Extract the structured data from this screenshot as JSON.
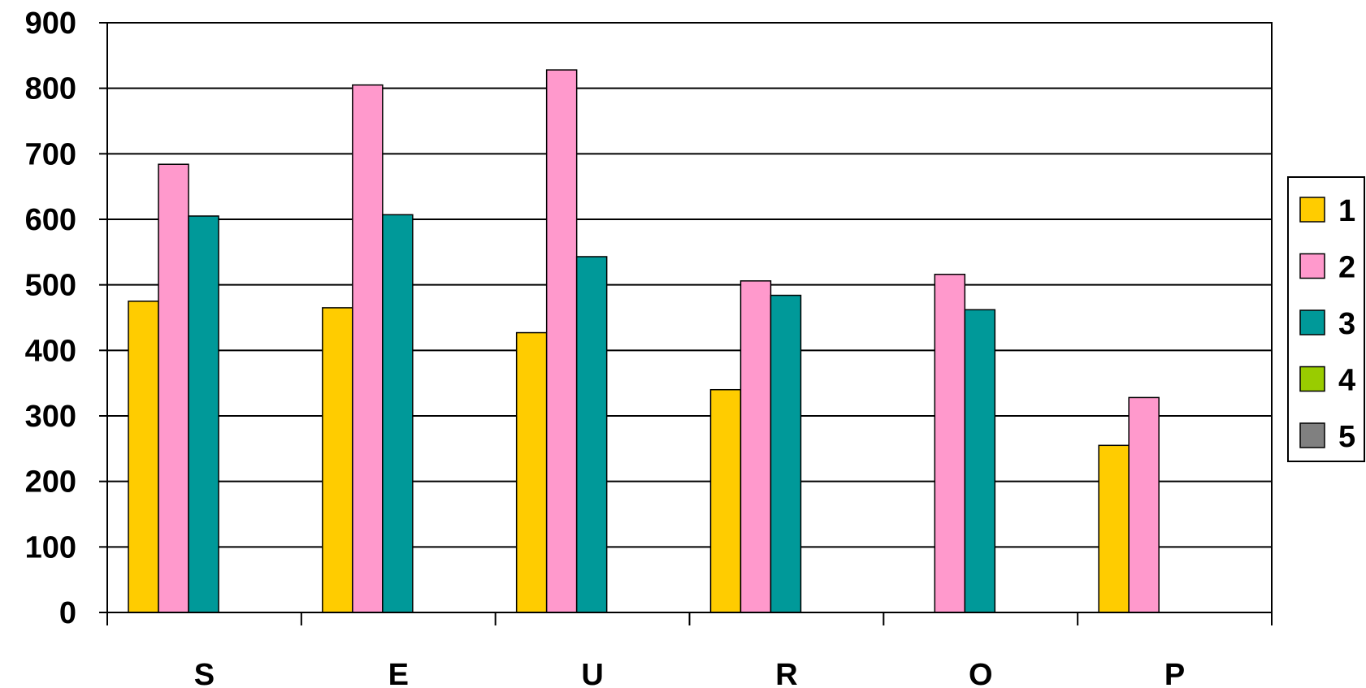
{
  "chart_data": {
    "type": "bar",
    "title": "",
    "xlabel": "",
    "ylabel": "",
    "categories": [
      "S",
      "E",
      "U",
      "R",
      "O",
      "P"
    ],
    "ylim": [
      0,
      900
    ],
    "yticks": [
      0,
      100,
      200,
      300,
      400,
      500,
      600,
      700,
      800,
      900
    ],
    "ytick_labels": [
      "0",
      "100",
      "200",
      "300",
      "400",
      "500",
      "600",
      "700",
      "800",
      "900"
    ],
    "grid": "horizontal",
    "legend_position": "right",
    "series": [
      {
        "name": "1",
        "color": "#FFCC00",
        "values": [
          475,
          465,
          427,
          340,
          null,
          255
        ]
      },
      {
        "name": "2",
        "color": "#FF99CC",
        "values": [
          684,
          805,
          828,
          506,
          516,
          328
        ]
      },
      {
        "name": "3",
        "color": "#009999",
        "values": [
          605,
          607,
          543,
          484,
          462,
          null
        ]
      },
      {
        "name": "4",
        "color": "#99CC00",
        "values": [
          null,
          null,
          null,
          null,
          null,
          null
        ]
      },
      {
        "name": "5",
        "color": "#808080",
        "values": [
          null,
          null,
          null,
          null,
          null,
          null
        ]
      }
    ]
  }
}
